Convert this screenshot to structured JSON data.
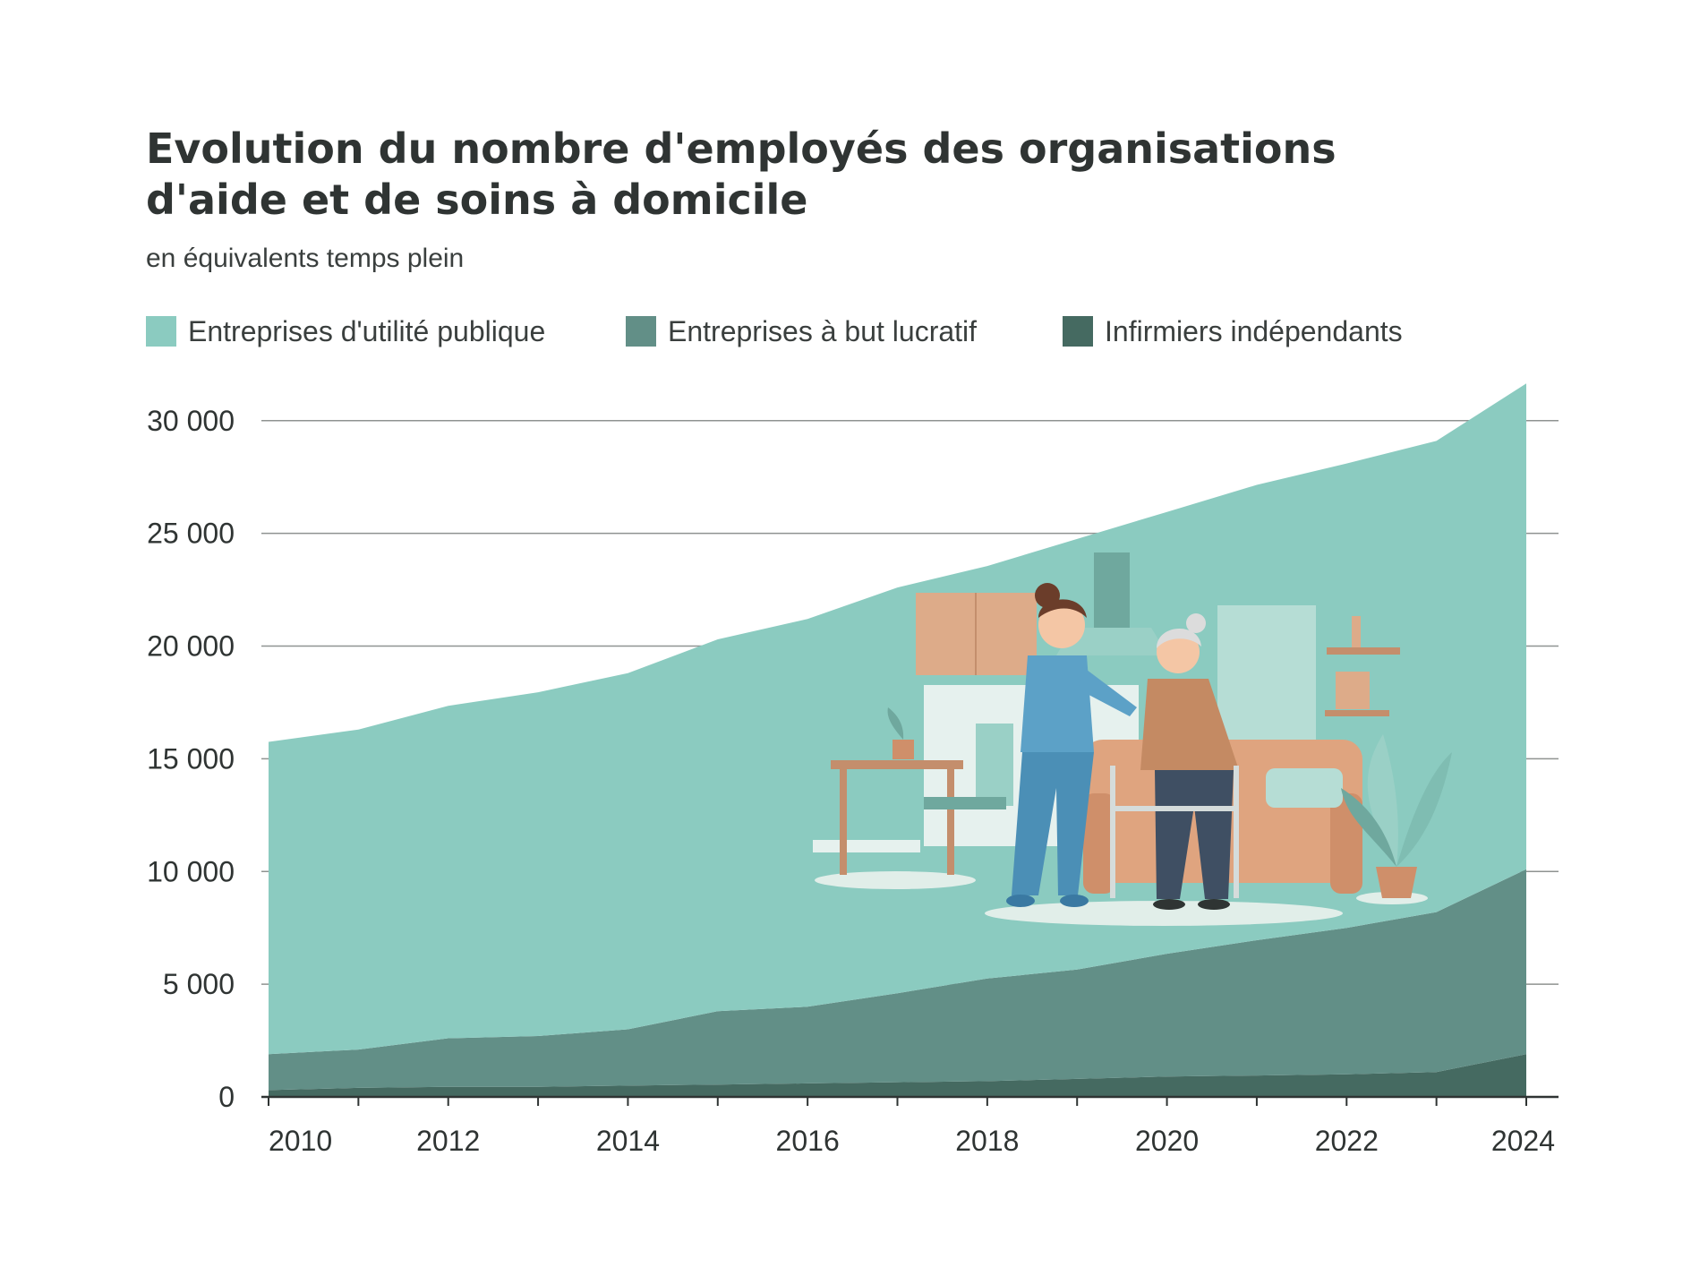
{
  "chart_data": {
    "type": "area",
    "stacked": true,
    "title_lines": [
      "Evolution du nombre d'employés des organisations",
      "d'aide et de soins à domicile"
    ],
    "subtitle": "en équivalents temps plein",
    "x": [
      2010,
      2011,
      2012,
      2013,
      2014,
      2015,
      2016,
      2017,
      2018,
      2019,
      2020,
      2021,
      2022,
      2023,
      2024
    ],
    "x_tick_labels": [
      "2010",
      "2012",
      "2014",
      "2016",
      "2018",
      "2020",
      "2022",
      "2024"
    ],
    "y_tick_values": [
      0,
      5000,
      10000,
      15000,
      20000,
      25000,
      30000
    ],
    "y_tick_labels": [
      "0",
      "5 000",
      "10 000",
      "15 000",
      "20 000",
      "25 000",
      "30 000"
    ],
    "ylim": [
      0,
      31500
    ],
    "grid": true,
    "legend_position": "top",
    "series": [
      {
        "name": "Infirmiers indépendants",
        "color": "#456a61",
        "values": [
          300,
          400,
          450,
          450,
          500,
          550,
          600,
          650,
          700,
          800,
          900,
          950,
          1000,
          1100,
          1900
        ]
      },
      {
        "name": "Entreprises à but lucratif",
        "color": "#628f87",
        "values": [
          1600,
          1700,
          2150,
          2250,
          2500,
          3250,
          3400,
          3950,
          4550,
          4850,
          5450,
          6000,
          6500,
          7100,
          8200
        ]
      },
      {
        "name": "Entreprises d'utilité publique",
        "color": "#8bcbc0",
        "values": [
          13850,
          14200,
          14750,
          15250,
          15800,
          16500,
          17200,
          18000,
          18300,
          19100,
          19600,
          20200,
          20600,
          20900,
          21550
        ]
      }
    ],
    "illustration": "home-care-nurse-helping-elderly-woman"
  }
}
